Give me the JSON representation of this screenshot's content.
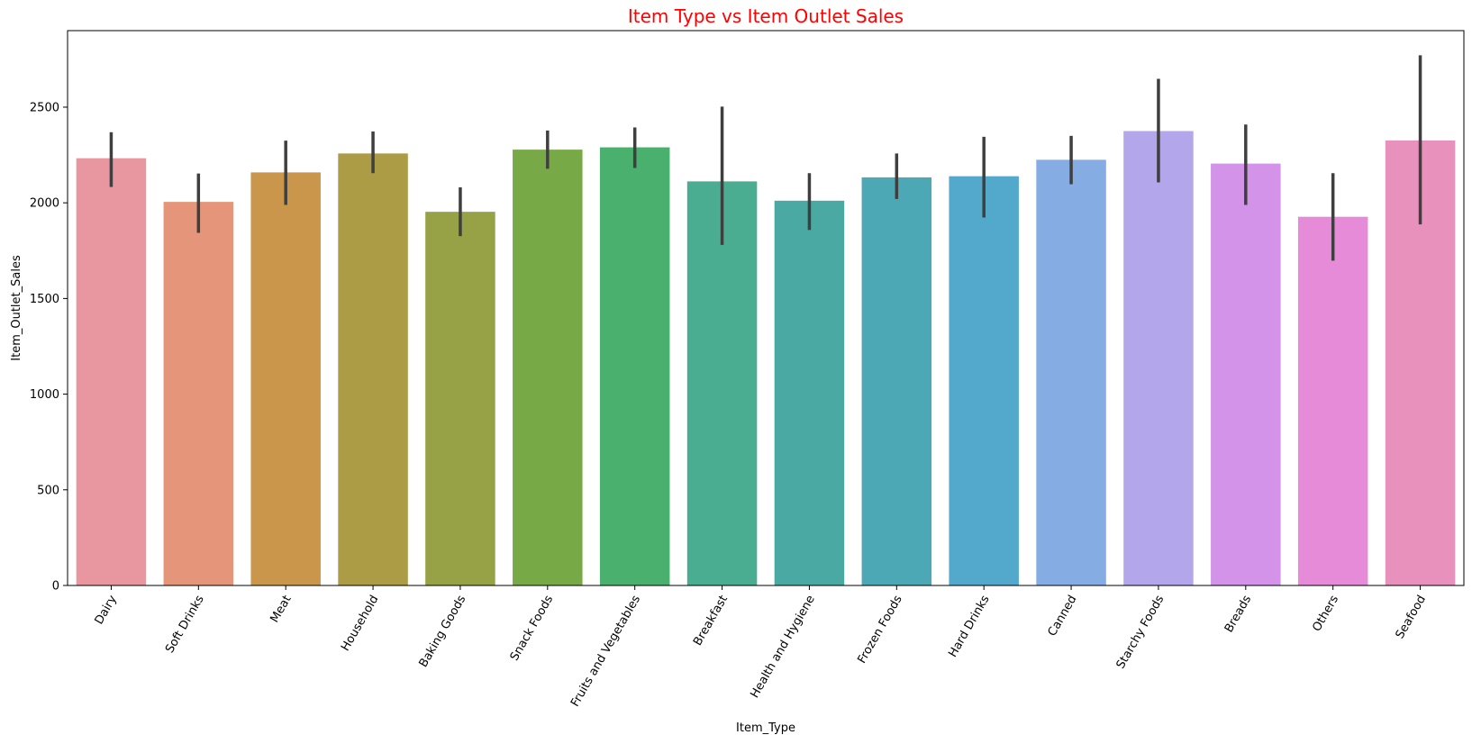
{
  "chart_data": {
    "type": "bar",
    "title": "Item Type vs Item Outlet Sales",
    "title_color": "#ff0000",
    "xlabel": "Item_Type",
    "ylabel": "Item_Outlet_Sales",
    "ylim": [
      0,
      2900
    ],
    "yticks": [
      "0",
      "500",
      "1000",
      "1500",
      "2000",
      "2500"
    ],
    "grid": false,
    "legend": "none",
    "error_bar_color": "#3f3f3f",
    "categories": [
      "Dairy",
      "Soft Drinks",
      "Meat",
      "Household",
      "Baking Goods",
      "Snack Foods",
      "Fruits and Vegetables",
      "Breakfast",
      "Health and Hygiene",
      "Frozen Foods",
      "Hard Drinks",
      "Canned",
      "Starchy Foods",
      "Breads",
      "Others",
      "Seafood"
    ],
    "values": [
      2233,
      2005,
      2159,
      2258,
      1953,
      2278,
      2290,
      2112,
      2011,
      2133,
      2139,
      2225,
      2375,
      2205,
      1927,
      2326
    ],
    "error_low": [
      2083,
      1843,
      1989,
      2155,
      1826,
      2178,
      2182,
      1780,
      1858,
      2020,
      1923,
      2097,
      2107,
      1989,
      1698,
      1887
    ],
    "error_high": [
      2369,
      2153,
      2325,
      2373,
      2081,
      2378,
      2394,
      2503,
      2155,
      2258,
      2345,
      2350,
      2648,
      2409,
      2155,
      2771
    ],
    "colors": [
      "#e8969f",
      "#e5967a",
      "#c9964b",
      "#ad9c46",
      "#97a146",
      "#77aa46",
      "#4ab06e",
      "#4aad91",
      "#4aaaa3",
      "#4ca8b5",
      "#53a9cc",
      "#86ace4",
      "#b4a6eb",
      "#d293e8",
      "#e68bd8",
      "#e891bd"
    ]
  }
}
